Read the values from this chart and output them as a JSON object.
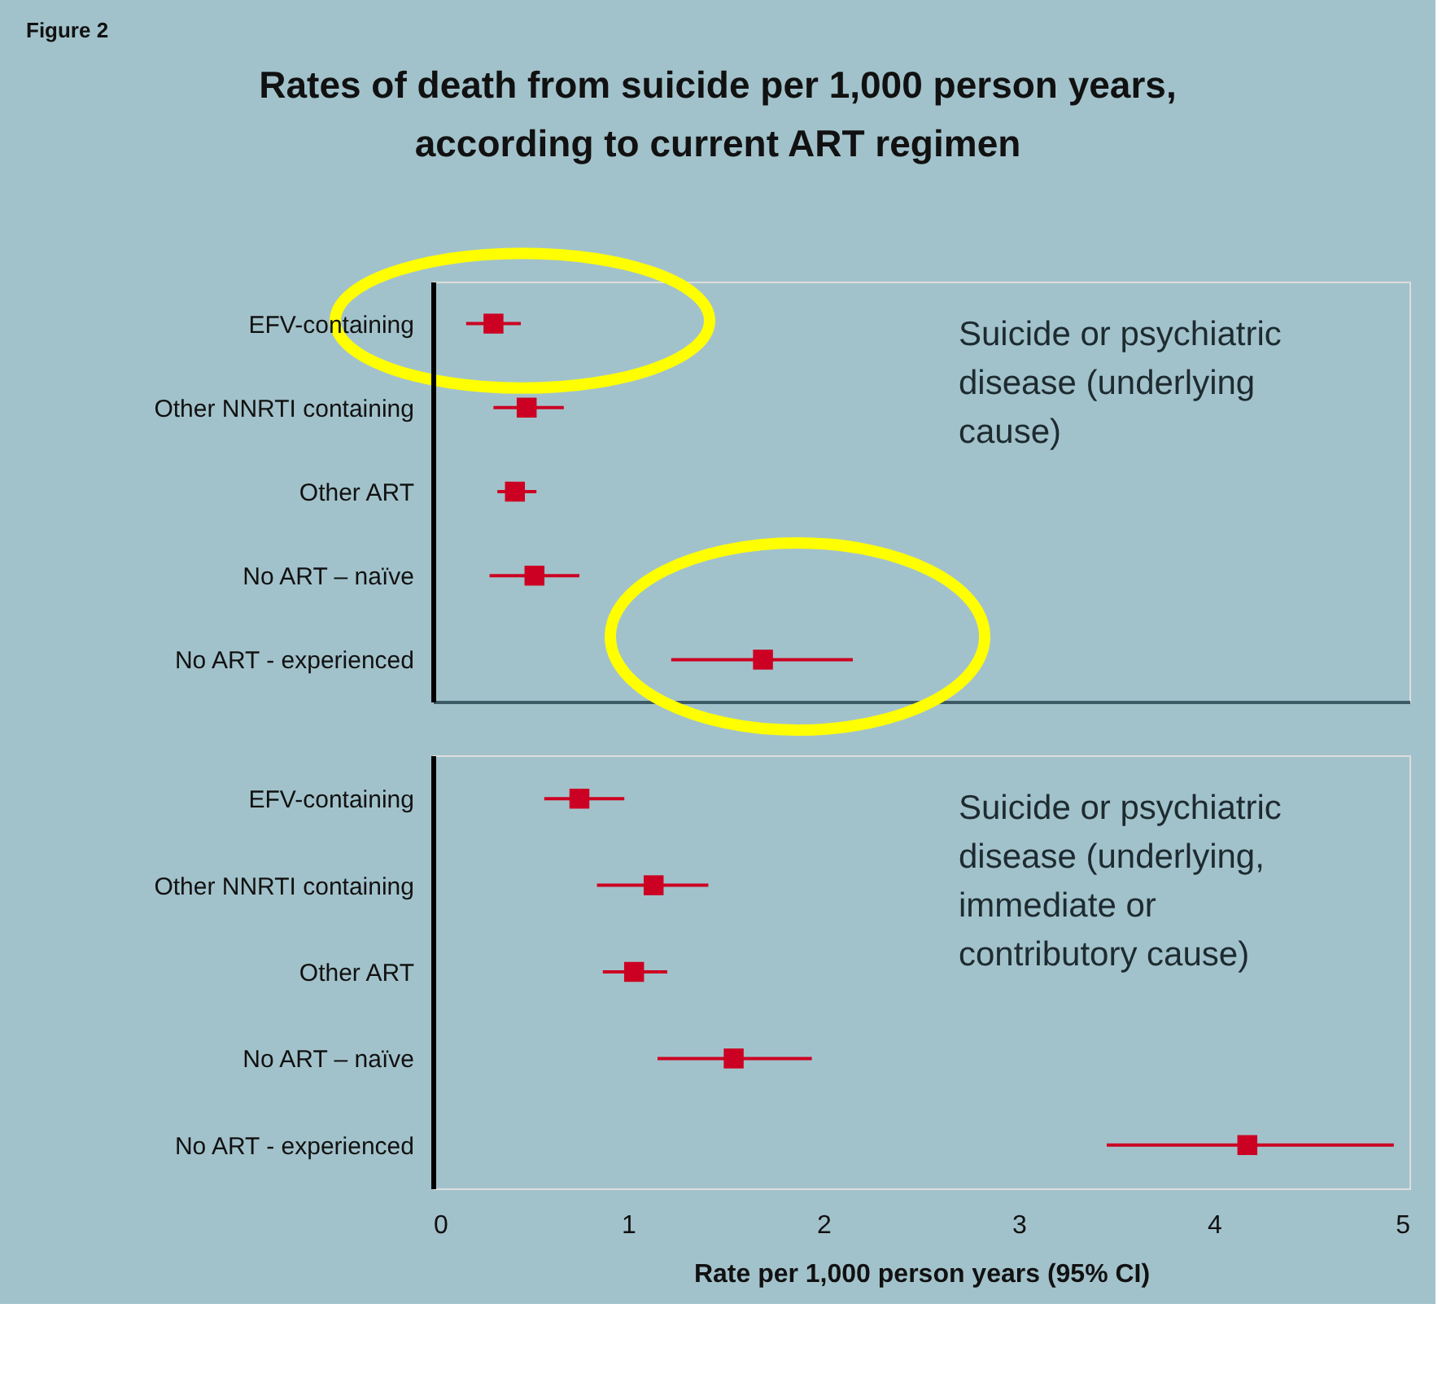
{
  "chart_data": [
    {
      "type": "scatter",
      "title": "Rates of death from suicide per 1,000 person years,\naccording to current ART regimen",
      "orientation": "horizontal",
      "marker": "square",
      "tick_labels": "y",
      "annotations": [
        "Figure 2",
        "Suicide or psychiatric\ndisease  (underlying\ncause)"
      ],
      "categories": [
        "EFV-containing",
        "Other NNRTI containing",
        "Other ART",
        "No ART – naïve",
        "No ART - experienced"
      ],
      "series": [
        {
          "color": "#cc0022",
          "values": [
            0.31,
            0.48,
            0.42,
            0.52,
            1.69
          ],
          "errors": [
            [
              0.17,
              0.45
            ],
            [
              0.31,
              0.67
            ],
            [
              0.33,
              0.53
            ],
            [
              0.29,
              0.75
            ],
            [
              1.22,
              2.15
            ]
          ]
        }
      ],
      "xlim": [
        0,
        5
      ]
    },
    {
      "type": "scatter",
      "xlabel": "Rate per 1,000 person years (95% CI)",
      "orientation": "horizontal",
      "marker": "square",
      "annotations": [
        "Suicide or psychiatric\ndisease (underlying,\nimmediate or\ncontributory cause)"
      ],
      "categories": [
        "EFV-containing",
        "Other NNRTI containing",
        "Other ART",
        "No ART – naïve",
        "No ART - experienced"
      ],
      "series": [
        {
          "color": "#cc0022",
          "values": [
            0.75,
            1.13,
            1.03,
            1.54,
            4.17
          ],
          "errors": [
            [
              0.57,
              0.98
            ],
            [
              0.84,
              1.41
            ],
            [
              0.87,
              1.2
            ],
            [
              1.15,
              1.94
            ],
            [
              3.45,
              4.92
            ]
          ]
        }
      ],
      "xlim": [
        0,
        5
      ],
      "xticks": [
        0,
        1,
        2,
        3,
        4,
        5
      ]
    }
  ]
}
